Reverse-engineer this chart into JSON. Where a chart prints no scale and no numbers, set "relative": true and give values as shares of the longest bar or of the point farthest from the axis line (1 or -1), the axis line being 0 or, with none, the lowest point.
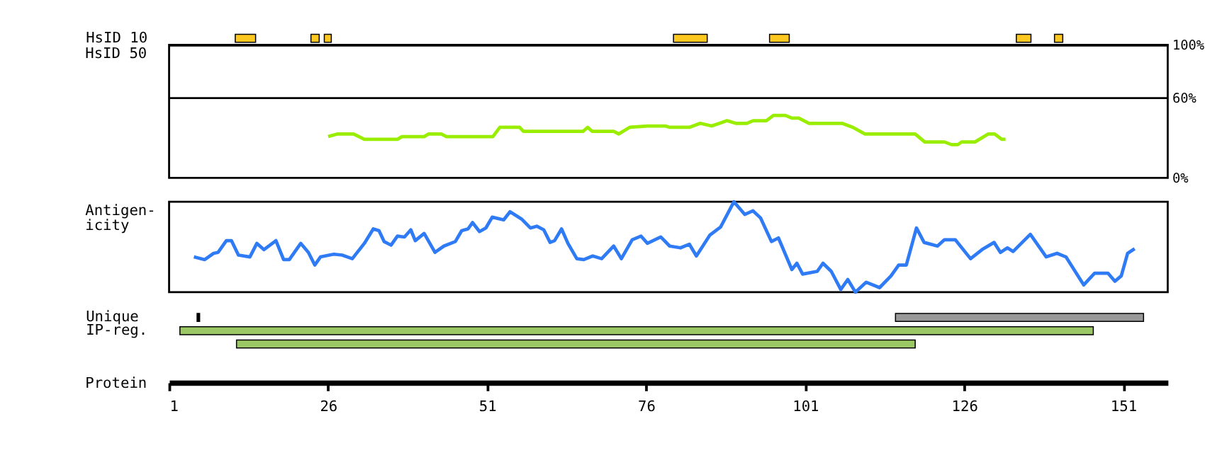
{
  "chart_data": [
    {
      "type": "bar",
      "orientation": "horizontal",
      "categories": [
        "HsID 10"
      ],
      "xlim": [
        1,
        158
      ],
      "tick_labels": "y",
      "series": [
        {
          "color": "#ffc820",
          "base": [
            11.4
          ],
          "values": [
            3.2
          ]
        },
        {
          "color": "#ffc820",
          "base": [
            23.3
          ],
          "values": [
            1.3
          ]
        },
        {
          "color": "#ffc820",
          "base": [
            25.4
          ],
          "values": [
            1.1
          ]
        },
        {
          "color": "#ffc820",
          "base": [
            80.3
          ],
          "values": [
            5.3
          ]
        },
        {
          "color": "#ffc820",
          "base": [
            95.4
          ],
          "values": [
            3.1
          ]
        },
        {
          "color": "#ffc820",
          "base": [
            134.2
          ],
          "values": [
            2.3
          ]
        },
        {
          "color": "#ffc820",
          "base": [
            140.2
          ],
          "values": [
            1.3
          ]
        }
      ]
    },
    {
      "type": "line",
      "ylabel": "HsID 50",
      "xlim": [
        1,
        158
      ],
      "ylim": [
        0,
        100
      ],
      "yticks": [
        {
          "value": 0,
          "label": "0%"
        },
        {
          "value": 60,
          "label": "60%"
        },
        {
          "value": 100,
          "label": "100%"
        }
      ],
      "tick_labels": "y",
      "ref_lines": [
        {
          "axis": "y",
          "value": 60
        }
      ],
      "x": [
        26,
        27.5,
        30,
        31.7,
        36.9,
        37.6,
        41.1,
        41.8,
        43.8,
        44.6,
        51.9,
        53,
        56.1,
        56.7,
        66.1,
        66.8,
        67.5,
        70.9,
        71.7,
        73.4,
        76.2,
        79,
        79.7,
        82.8,
        84.5,
        86.3,
        88.7,
        90.1,
        91.8,
        92.8,
        94.9,
        96,
        97.9,
        98.9,
        100,
        101.6,
        106.8,
        108.5,
        110.4,
        118.3,
        119.8,
        122.9,
        124,
        125,
        125.6,
        127.7,
        129.8,
        130.8,
        131.9,
        132.5
      ],
      "series": [
        {
          "color": "#99ee00",
          "values": [
            31,
            33,
            33,
            29,
            29,
            31,
            31,
            33,
            33,
            31,
            31,
            38,
            38,
            35,
            35,
            38,
            35,
            35,
            33,
            38,
            39,
            39,
            38,
            38,
            41,
            39,
            43,
            41,
            41,
            43,
            43,
            47,
            47,
            45,
            45,
            41,
            41,
            38,
            33,
            33,
            27,
            27,
            25,
            25,
            27,
            27,
            33,
            33,
            29,
            29
          ]
        }
      ]
    },
    {
      "type": "line",
      "ylabel": "Antigen-\nicity",
      "relative": true,
      "xlim": [
        1,
        158
      ],
      "tick_labels": false,
      "x": [
        4.9,
        6.6,
        8,
        8.7,
        10,
        10.8,
        11.9,
        13.7,
        14.8,
        15.9,
        17.8,
        19,
        19.9,
        21.7,
        22.9,
        23.9,
        24.8,
        26.9,
        28.2,
        29.8,
        31.7,
        33.1,
        34,
        34.8,
        35.9,
        36.9,
        38,
        39,
        39.7,
        41.1,
        42.8,
        44.2,
        46,
        47,
        48,
        48.7,
        49.8,
        50.8,
        51.8,
        53.6,
        54.6,
        56.4,
        57.8,
        58.8,
        59.9,
        60.9,
        61.6,
        62.7,
        63.7,
        65.1,
        66.2,
        67.6,
        69,
        70.9,
        72.1,
        73.8,
        75.2,
        76.2,
        78.3,
        79.7,
        81.4,
        82.8,
        83.9,
        86,
        87.7,
        89.8,
        91.5,
        92.8,
        94,
        95.7,
        96.8,
        98.9,
        99.7,
        100.6,
        102.9,
        103.8,
        105.1,
        106.6,
        107.7,
        108.9,
        110.6,
        112.7,
        114.5,
        115.7,
        116.9,
        118.5,
        119.7,
        121.8,
        122.9,
        124.6,
        127,
        128.8,
        130.7,
        131.7,
        132.8,
        133.7,
        136.4,
        138.9,
        140.6,
        142,
        144.8,
        146.5,
        148.6,
        149.7,
        150.7,
        151.7,
        152.8
      ],
      "series": [
        {
          "color": "#2f7bf5",
          "values": [
            0.39,
            0.36,
            0.43,
            0.44,
            0.57,
            0.57,
            0.41,
            0.39,
            0.54,
            0.47,
            0.57,
            0.36,
            0.36,
            0.54,
            0.44,
            0.3,
            0.39,
            0.42,
            0.41,
            0.37,
            0.54,
            0.7,
            0.68,
            0.56,
            0.52,
            0.62,
            0.61,
            0.69,
            0.57,
            0.65,
            0.44,
            0.51,
            0.56,
            0.68,
            0.7,
            0.77,
            0.67,
            0.71,
            0.83,
            0.8,
            0.89,
            0.81,
            0.71,
            0.73,
            0.69,
            0.55,
            0.57,
            0.7,
            0.54,
            0.37,
            0.36,
            0.4,
            0.37,
            0.51,
            0.37,
            0.58,
            0.62,
            0.54,
            0.61,
            0.51,
            0.49,
            0.53,
            0.4,
            0.63,
            0.72,
            1.0,
            0.86,
            0.9,
            0.82,
            0.56,
            0.6,
            0.25,
            0.32,
            0.2,
            0.23,
            0.32,
            0.23,
            0.03,
            0.14,
            0.0,
            0.11,
            0.05,
            0.18,
            0.3,
            0.3,
            0.71,
            0.55,
            0.51,
            0.58,
            0.58,
            0.37,
            0.47,
            0.55,
            0.44,
            0.49,
            0.45,
            0.64,
            0.39,
            0.43,
            0.39,
            0.08,
            0.21,
            0.21,
            0.12,
            0.18,
            0.43,
            0.48
          ]
        }
      ]
    },
    {
      "type": "bar",
      "orientation": "horizontal",
      "categories": [
        "Unique",
        "IP-reg.",
        null
      ],
      "xlabel": "Protein",
      "xlim": [
        1,
        158
      ],
      "xticks": [
        1,
        26,
        51,
        76,
        101,
        126,
        151
      ],
      "series": [
        {
          "color": "#000000",
          "base": [
            5.4,
            null,
            null
          ],
          "values": [
            0.4,
            null,
            null
          ]
        },
        {
          "color": "#999999",
          "base": [
            115.2,
            null,
            null
          ],
          "values": [
            39,
            null,
            null
          ]
        },
        {
          "color": "#9cc765",
          "base": [
            null,
            2.7,
            11.6
          ],
          "values": [
            null,
            143.6,
            106.7
          ]
        }
      ]
    }
  ]
}
